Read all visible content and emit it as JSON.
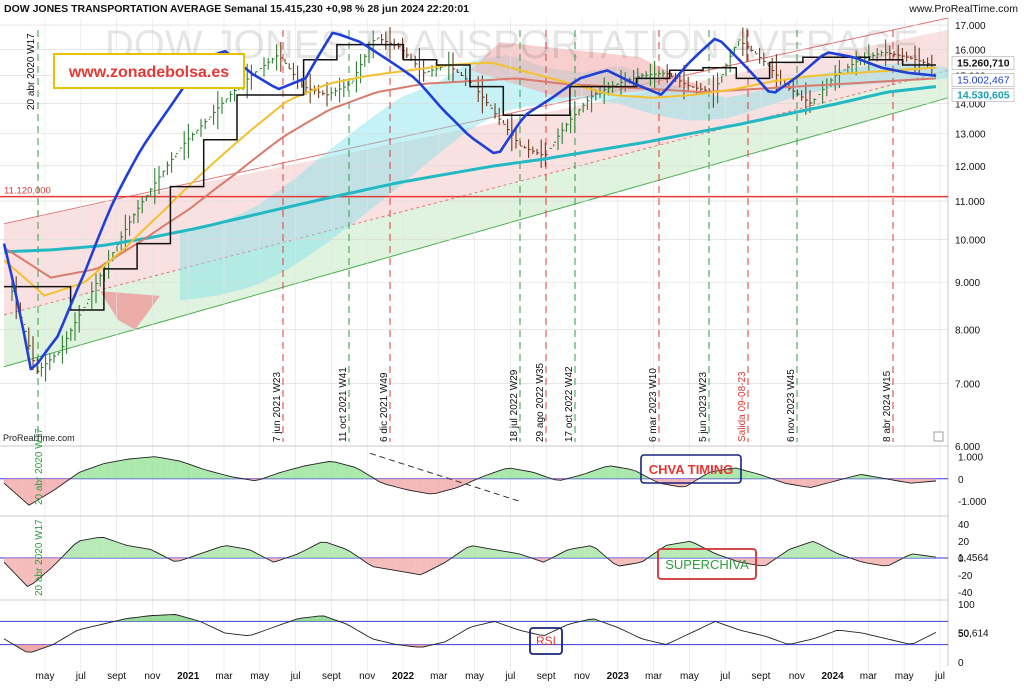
{
  "header": {
    "title": "DOW JONES TRANSPORTATION AVERAGE Semanal 15.415,230 +0,98 % 28 jun 2024 22:20:01",
    "source": "www.ProRealTime.com"
  },
  "watermark": "DOW JONES TRANSPORTATION AVERAGE",
  "brand_label": "www.zonadebolsa.es",
  "footer_source": "ProRealTime.com",
  "colors": {
    "price_up": "#2e7d32",
    "price_down": "#6b3a1f",
    "ma_fast": "#1f3fd6",
    "ma_mid": "#f2c12e",
    "ma_slow": "#d97b6c",
    "ma_long": "#22b8c4",
    "signal_line": "#111111",
    "support": "#e53935",
    "channel_green": "#4caf50",
    "brand_red": "#e53935",
    "brand_border": "#e6c200"
  },
  "chart_data": [
    {
      "type": "line",
      "name": "main",
      "y_axis": {
        "ticks": [
          "17.000",
          "16.000",
          "15.000",
          "14.000",
          "13.000",
          "12.000",
          "11.000",
          "10.000",
          "9.000",
          "8.000",
          "7.000",
          "6.000"
        ],
        "ylim": [
          6000,
          17300
        ],
        "log": true
      },
      "x_axis": {
        "ticks": [
          "may",
          "jul",
          "sept",
          "nov",
          "2021",
          "mar",
          "may",
          "jul",
          "sept",
          "nov",
          "2022",
          "mar",
          "may",
          "jul",
          "sept",
          "nov",
          "2023",
          "mar",
          "may",
          "jul",
          "sept",
          "nov",
          "2024",
          "mar",
          "may",
          "jul"
        ]
      },
      "price_labels": [
        "15.260,710",
        "15.002,467",
        "14.530,605"
      ],
      "horizontal_level": {
        "label": "11.120,000",
        "value": 11120
      },
      "vertical_markers": [
        {
          "label": "20 abr 2020 W17",
          "color": "green"
        },
        {
          "label": "7 jun 2021 W23",
          "color": "red"
        },
        {
          "label": "11 oct 2021 W41",
          "color": "green"
        },
        {
          "label": "6 dic 2021 W49",
          "color": "red"
        },
        {
          "label": "18 jul 2022 W29",
          "color": "green"
        },
        {
          "label": "29 ago 2022 W35",
          "color": "red"
        },
        {
          "label": "17 oct 2022 W42",
          "color": "green"
        },
        {
          "label": "6 mar 2023 W10",
          "color": "red"
        },
        {
          "label": "5 jun 2023 W23",
          "color": "green"
        },
        {
          "label": "Salida 09-08-23",
          "color": "red"
        },
        {
          "label": "6 nov 2023 W45",
          "color": "green"
        },
        {
          "label": "8 abr 2024 W15",
          "color": "red"
        }
      ],
      "grid": true,
      "price_path": [
        8800,
        7200,
        7600,
        8500,
        9500,
        10600,
        11600,
        12600,
        13400,
        14300,
        15100,
        15800,
        14600,
        14300,
        14700,
        16500,
        16100,
        15100,
        15400,
        14700,
        13600,
        12600,
        12300,
        13400,
        14300,
        14700,
        15000,
        15100,
        14600,
        14400,
        16400,
        15600,
        14600,
        14000,
        15000,
        15600,
        15900,
        15700,
        15400
      ],
      "ma_fast": [
        9900,
        7200,
        7900,
        9300,
        11000,
        12500,
        13800,
        15200,
        16000,
        15100,
        14500,
        14900,
        16700,
        16300,
        15600,
        14900,
        13800,
        12900,
        12300,
        13600,
        14200,
        14900,
        15200,
        14700,
        14300,
        15500,
        16500,
        15400,
        14300,
        15000,
        15900,
        15700,
        15300,
        15100,
        15000
      ],
      "ma_mid": [
        9500,
        8700,
        9000,
        9800,
        10800,
        11900,
        13000,
        14100,
        14700,
        15000,
        15200,
        15400,
        15500,
        15100,
        14700,
        14300,
        14200,
        14300,
        14500,
        14800,
        15000,
        15100,
        15200,
        15300
      ],
      "ma_slow": [
        9800,
        9100,
        9300,
        10000,
        10800,
        11800,
        12900,
        13800,
        14400,
        14700,
        14800,
        14900,
        14700,
        14600,
        14500,
        14400,
        14500,
        14600,
        14700,
        14800,
        14900
      ],
      "ma_long": [
        9700,
        9750,
        9850,
        10050,
        10300,
        10600,
        10900,
        11200,
        11500,
        11750,
        12000,
        12200,
        12450,
        12700,
        13000,
        13300,
        13650,
        14000,
        14400,
        14600
      ]
    },
    {
      "type": "area",
      "name": "CHVA TIMING",
      "y_axis": {
        "ticks": [
          "1.000",
          "0",
          "-1.000"
        ],
        "ylim": [
          -1500,
          1300
        ]
      },
      "values": [
        -200,
        -1200,
        -500,
        300,
        700,
        900,
        1000,
        800,
        400,
        100,
        -100,
        300,
        600,
        800,
        500,
        -200,
        -500,
        -700,
        -400,
        100,
        500,
        300,
        -100,
        200,
        600,
        400,
        -200,
        -400,
        300,
        500,
        200,
        -200,
        -400,
        -100,
        200,
        0,
        -200,
        -100
      ]
    },
    {
      "type": "area",
      "name": "SUPERCHIVA",
      "y_axis": {
        "ticks": [
          "40",
          "20",
          "0",
          "-20",
          "-40"
        ],
        "ylim": [
          -45,
          45
        ],
        "last_value": "1,4564"
      },
      "values": [
        -5,
        -35,
        -10,
        20,
        25,
        15,
        10,
        -5,
        5,
        15,
        10,
        -5,
        5,
        20,
        10,
        -10,
        -15,
        -20,
        -5,
        15,
        10,
        5,
        -5,
        10,
        15,
        -10,
        -5,
        15,
        20,
        5,
        -5,
        -10,
        10,
        20,
        5,
        -5,
        -10,
        5,
        1
      ]
    },
    {
      "type": "line",
      "name": "RSI",
      "y_axis": {
        "ticks": [
          "100",
          "50",
          "0"
        ],
        "ylim": [
          0,
          100
        ],
        "last_value": "50,614",
        "bands": [
          70,
          30
        ]
      },
      "values": [
        40,
        15,
        30,
        55,
        65,
        75,
        80,
        82,
        70,
        50,
        45,
        60,
        75,
        80,
        65,
        40,
        30,
        25,
        35,
        60,
        70,
        55,
        45,
        65,
        75,
        60,
        40,
        30,
        50,
        70,
        55,
        45,
        30,
        40,
        55,
        50,
        40,
        30,
        51
      ]
    }
  ],
  "annotations": {
    "chva_label": "CHVA TIMING",
    "superchiva_label": "SUPERCHIVA",
    "rsi_label": "RSI",
    "marker_top_left": "20 abr 2020 W17"
  }
}
